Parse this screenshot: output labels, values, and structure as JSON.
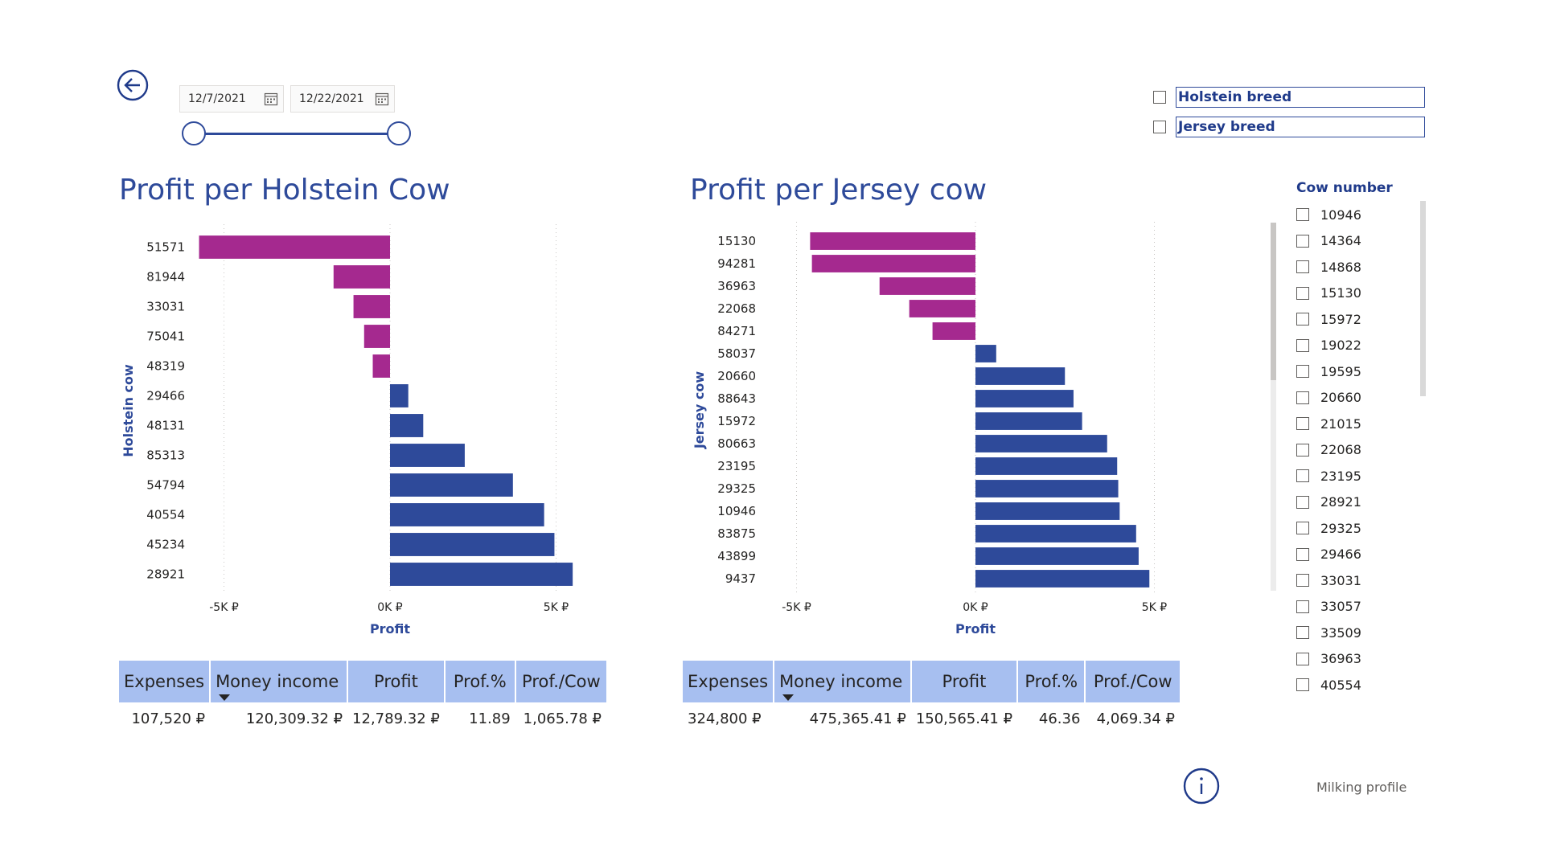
{
  "nav": {
    "back_icon": "arrow-left-circle-icon"
  },
  "date_range": {
    "start": "12/7/2021",
    "end": "12/22/2021"
  },
  "breed_filter": [
    {
      "label": "Holstein breed",
      "checked": false
    },
    {
      "label": "Jersey breed",
      "checked": false
    }
  ],
  "colors": {
    "negative": "#a5298f",
    "positive": "#2e4a9a",
    "title": "#2e4a9a",
    "header_bg": "#a7bff0"
  },
  "holstein": {
    "title": "Profit per Holstein Cow",
    "table": {
      "headers": [
        "Expenses",
        "Money income",
        "Profit",
        "Prof.%",
        "Prof./Cow"
      ],
      "values": [
        "107,520 ₽",
        "120,309.32 ₽",
        "12,789.32 ₽",
        "11.89",
        "1,065.78 ₽"
      ]
    }
  },
  "jersey": {
    "title": "Profit per Jersey cow",
    "table": {
      "headers": [
        "Expenses",
        "Money income",
        "Profit",
        "Prof.%",
        "Prof./Cow"
      ],
      "values": [
        "324,800 ₽",
        "475,365.41 ₽",
        "150,565.41 ₽",
        "46.36",
        "4,069.34 ₽"
      ]
    }
  },
  "chart_data": [
    {
      "type": "bar",
      "orientation": "horizontal",
      "title": "Profit per Holstein Cow",
      "xlabel": "Profit",
      "ylabel": "Holstein cow",
      "xlim": [
        -5500,
        5500
      ],
      "xticks": [
        "-5K ₽",
        "0K ₽",
        "5K ₽"
      ],
      "xtick_values": [
        -5000,
        0,
        5000
      ],
      "grid": true,
      "categories": [
        "51571",
        "81944",
        "33031",
        "75041",
        "48319",
        "29466",
        "48131",
        "85313",
        "54794",
        "40554",
        "45234",
        "28921"
      ],
      "values": [
        -5750,
        -1700,
        -1100,
        -780,
        -520,
        550,
        1000,
        2250,
        3700,
        4640,
        4950,
        5500
      ]
    },
    {
      "type": "bar",
      "orientation": "horizontal",
      "title": "Profit per Jersey cow",
      "xlabel": "Profit",
      "ylabel": "Jersey cow",
      "xlim": [
        -5500,
        5500
      ],
      "xticks": [
        "-5K ₽",
        "0K ₽",
        "5K ₽"
      ],
      "xtick_values": [
        -5000,
        0,
        5000
      ],
      "grid": true,
      "categories": [
        "15130",
        "94281",
        "36963",
        "22068",
        "84271",
        "58037",
        "20660",
        "88643",
        "15972",
        "80663",
        "23195",
        "29325",
        "10946",
        "83875",
        "43899",
        "9437"
      ],
      "values": [
        -4620,
        -4570,
        -2680,
        -1850,
        -1200,
        580,
        2500,
        2740,
        2980,
        3680,
        3960,
        3990,
        4030,
        4490,
        4560,
        4860
      ]
    }
  ],
  "cow_slicer": {
    "title": "Cow number",
    "items": [
      "10946",
      "14364",
      "14868",
      "15130",
      "15972",
      "19022",
      "19595",
      "20660",
      "21015",
      "22068",
      "23195",
      "28921",
      "29325",
      "29466",
      "33031",
      "33057",
      "33509",
      "36963",
      "40554"
    ]
  },
  "footer": {
    "info_icon": "info-circle-icon",
    "page_name": "Milking profile"
  }
}
